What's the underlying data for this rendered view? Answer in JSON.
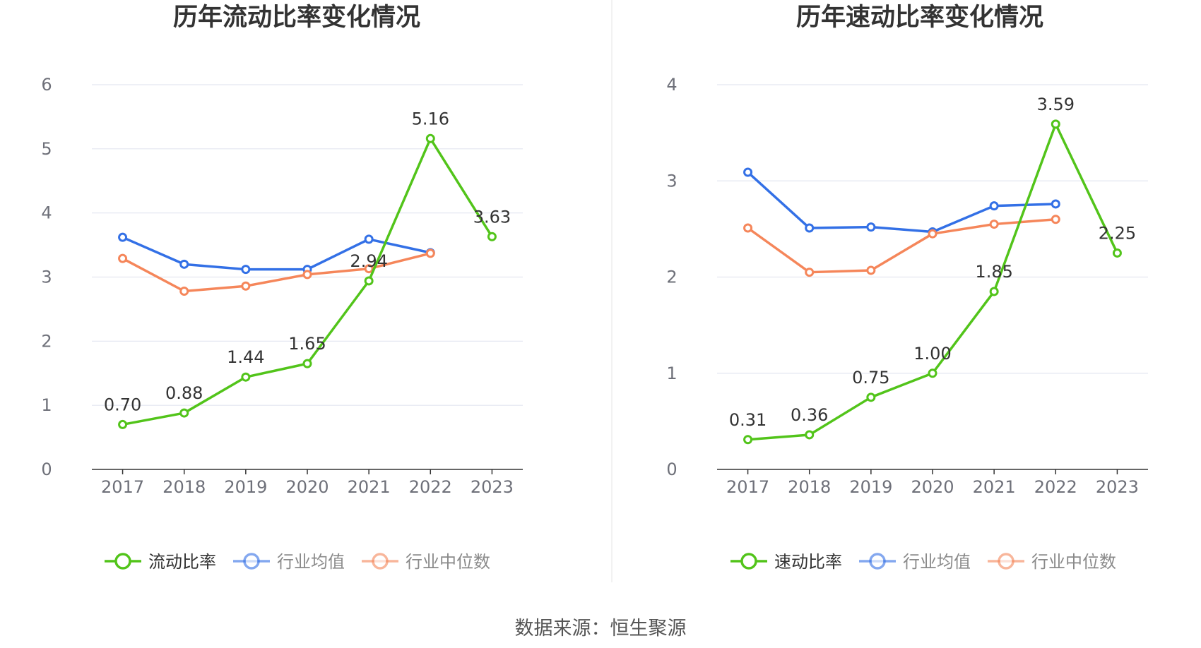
{
  "colors": {
    "primary": "#52c41a",
    "average": "#3370e6",
    "median": "#f5865a",
    "grid": "#e3e6f0",
    "axis": "#333333",
    "divider": "#eeeeee"
  },
  "source_text": "数据来源：恒生聚源",
  "chart_data": [
    {
      "type": "line",
      "title": "历年流动比率变化情况",
      "categories": [
        "2017",
        "2018",
        "2019",
        "2020",
        "2021",
        "2022",
        "2023"
      ],
      "ylim": [
        0,
        6
      ],
      "yticks": [
        0,
        1,
        2,
        3,
        4,
        5,
        6
      ],
      "series": [
        {
          "name": "流动比率",
          "role": "primary",
          "values": [
            0.7,
            0.88,
            1.44,
            1.65,
            2.94,
            5.16,
            3.63
          ],
          "labels": [
            "0.70",
            "0.88",
            "1.44",
            "1.65",
            "2.94",
            "5.16",
            "3.63"
          ]
        },
        {
          "name": "行业均值",
          "role": "average",
          "values": [
            3.62,
            3.2,
            3.12,
            3.12,
            3.59,
            3.38,
            null
          ]
        },
        {
          "name": "行业中位数",
          "role": "median",
          "values": [
            3.29,
            2.78,
            2.86,
            3.04,
            3.13,
            3.37,
            null
          ]
        }
      ]
    },
    {
      "type": "line",
      "title": "历年速动比率变化情况",
      "categories": [
        "2017",
        "2018",
        "2019",
        "2020",
        "2021",
        "2022",
        "2023"
      ],
      "ylim": [
        0,
        4
      ],
      "yticks": [
        0,
        1,
        2,
        3,
        4
      ],
      "series": [
        {
          "name": "速动比率",
          "role": "primary",
          "values": [
            0.31,
            0.36,
            0.75,
            1.0,
            1.85,
            3.59,
            2.25
          ],
          "labels": [
            "0.31",
            "0.36",
            "0.75",
            "1.00",
            "1.85",
            "3.59",
            "2.25"
          ]
        },
        {
          "name": "行业均值",
          "role": "average",
          "values": [
            3.09,
            2.51,
            2.52,
            2.47,
            2.74,
            2.76,
            null
          ]
        },
        {
          "name": "行业中位数",
          "role": "median",
          "values": [
            2.51,
            2.05,
            2.07,
            2.45,
            2.55,
            2.6,
            null
          ]
        }
      ]
    }
  ]
}
